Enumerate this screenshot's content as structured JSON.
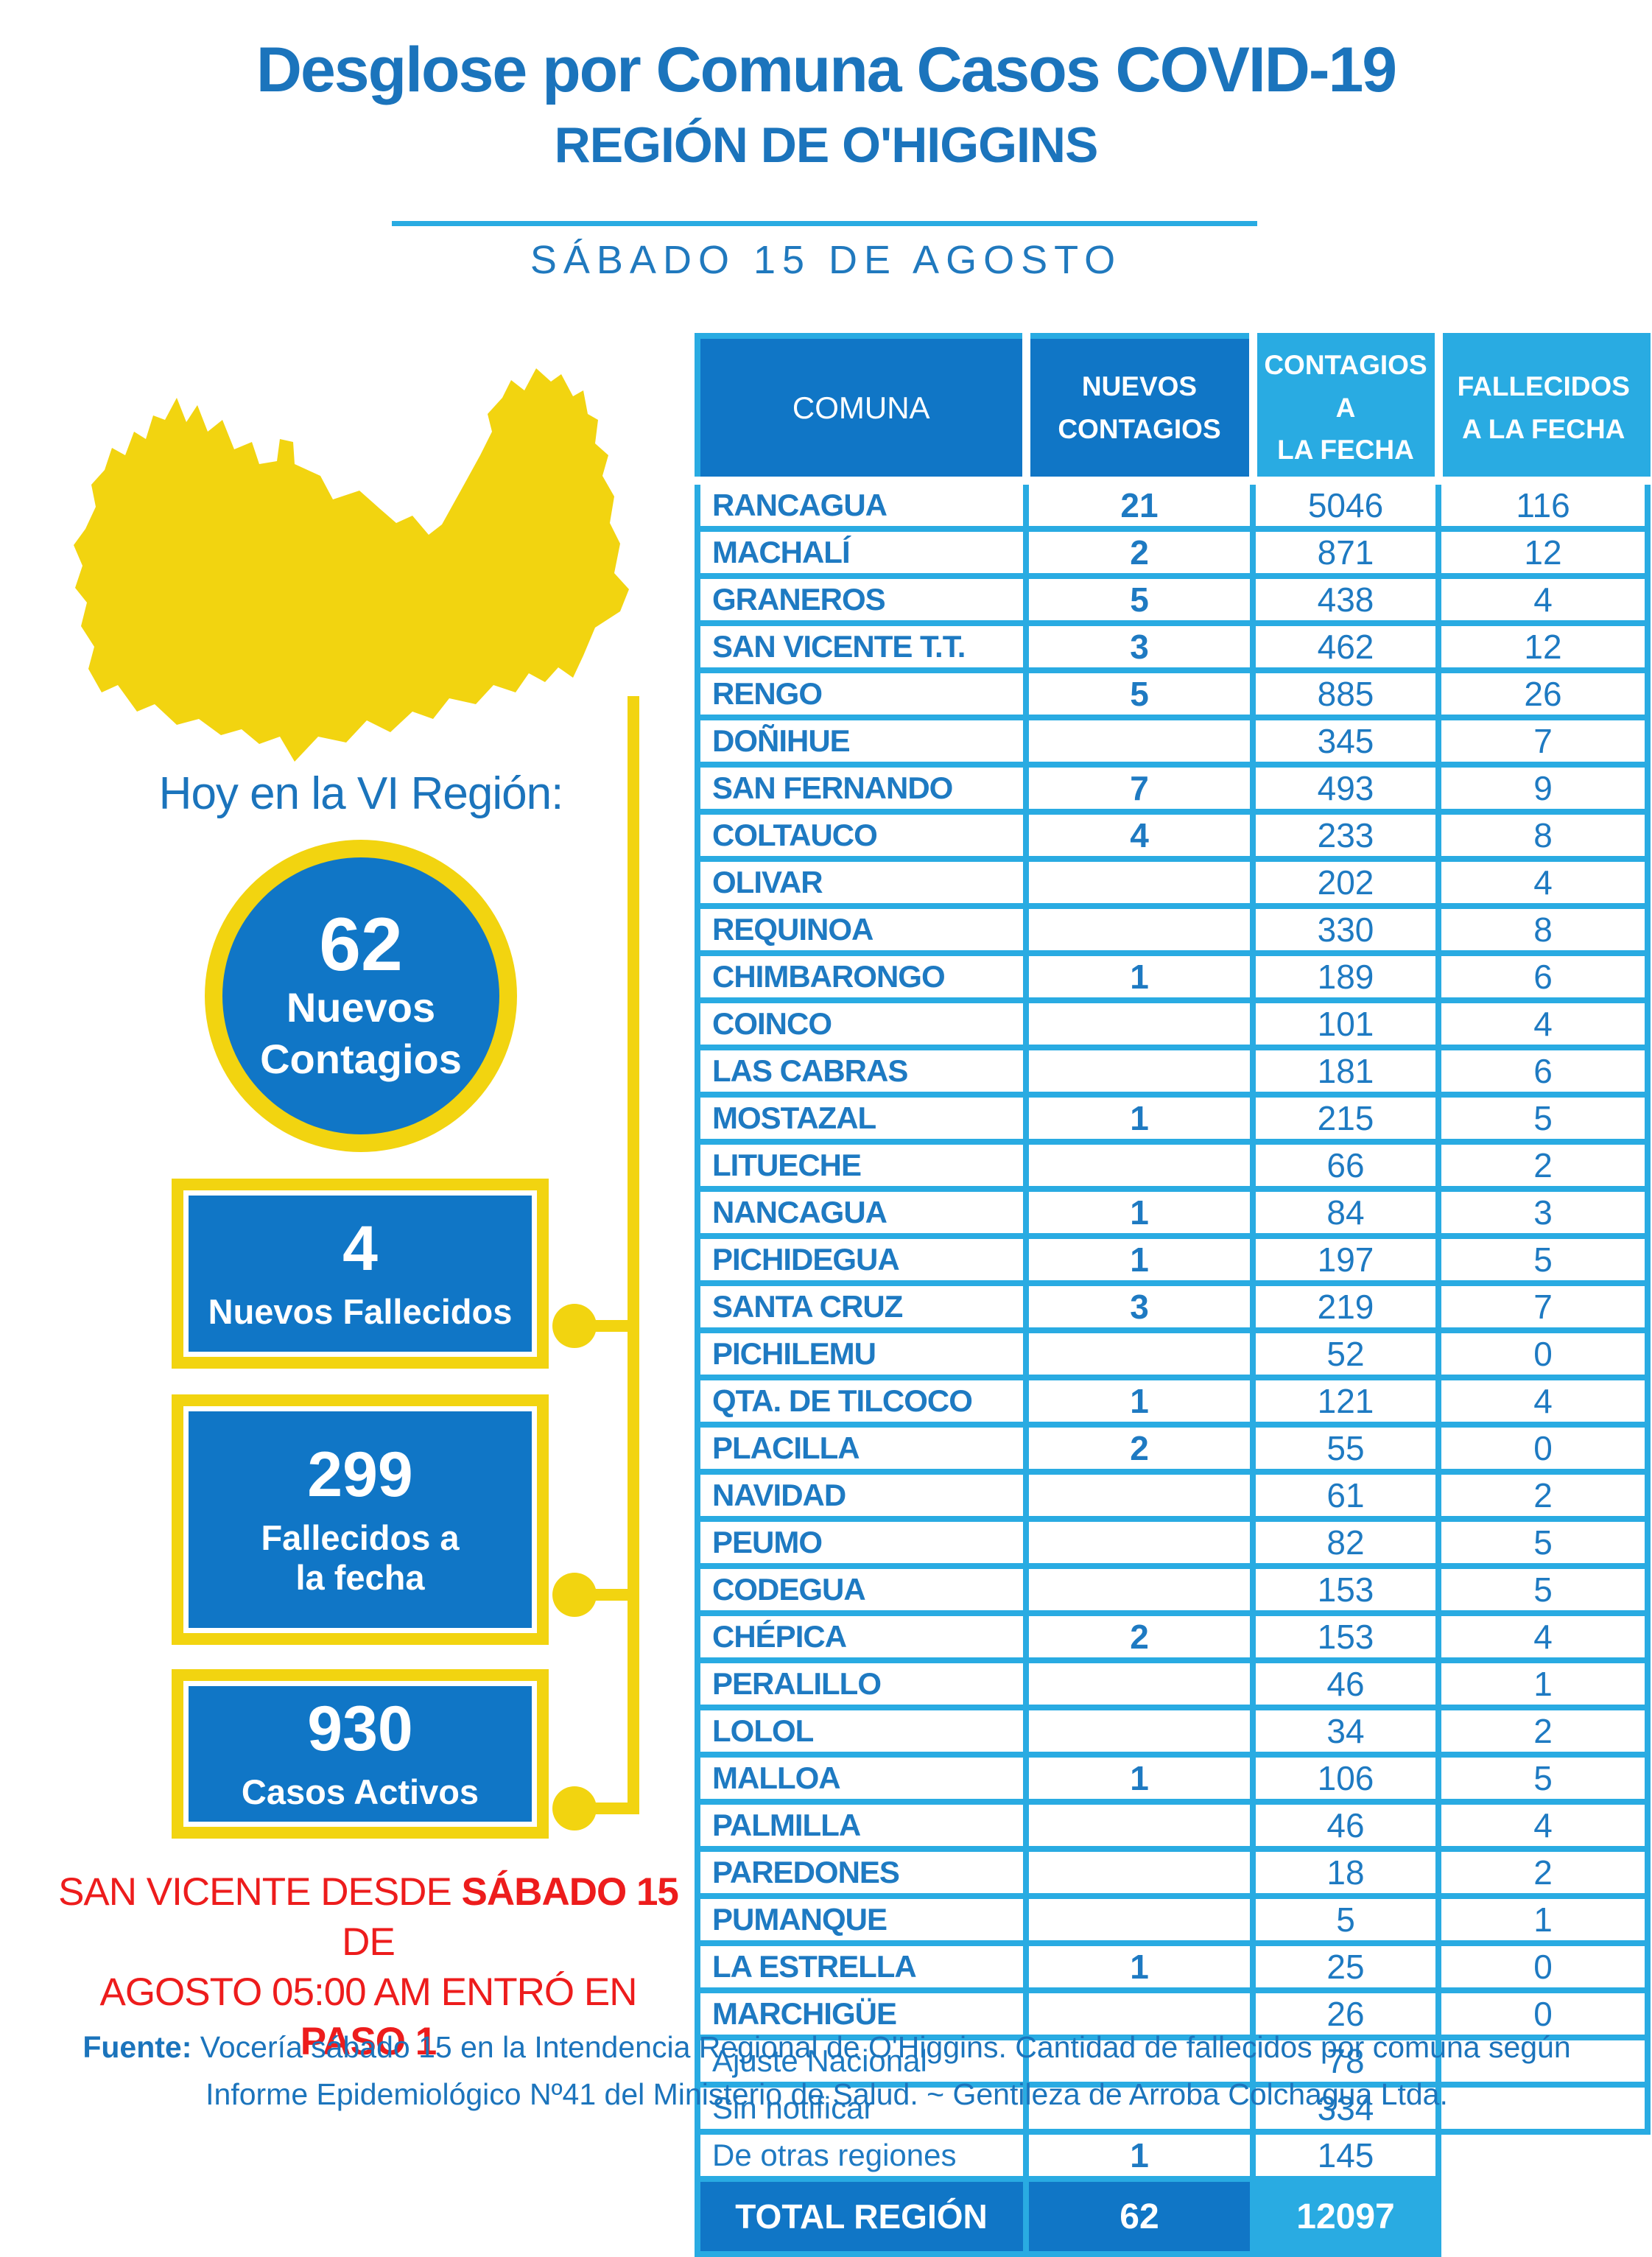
{
  "colors": {
    "title_blue": "#1b74bc",
    "light_blue": "#29abe2",
    "dark_blue_fill": "#1076c6",
    "cell_text_blue": "#1e7ac2",
    "yellow": "#f2d410",
    "red": "#ed1c1c"
  },
  "header": {
    "title": "Desglose por Comuna Casos COVID-19",
    "subtitle": "REGIÓN DE O'HIGGINS",
    "date": "SÁBADO 15 DE AGOSTO"
  },
  "left": {
    "hoy_label": "Hoy en la VI Región:",
    "circle": {
      "value": "62",
      "label_line1": "Nuevos",
      "label_line2": "Contagios"
    },
    "boxes": [
      {
        "value": "4",
        "label": [
          "Nuevos Fallecidos"
        ]
      },
      {
        "value": "299",
        "label": [
          "Fallecidos a",
          "la fecha"
        ]
      },
      {
        "value": "930",
        "label": [
          "Casos Activos"
        ]
      }
    ],
    "map_icon": "ohiggins-region-silhouette"
  },
  "alert": {
    "l1a": "SAN VICENTE DESDE ",
    "l1b": "SÁBADO 15",
    "l1c": " DE",
    "l2a": "AGOSTO 05:00 AM ENTRÓ EN ",
    "l2b": "PASO 1"
  },
  "table": {
    "headers": {
      "comuna": "COMUNA",
      "nuevos": [
        "NUEVOS",
        "CONTAGIOS"
      ],
      "contagios": [
        "CONTAGIOS A",
        "LA FECHA"
      ],
      "fallecidos": [
        "FALLECIDOS",
        "A LA FECHA"
      ]
    },
    "rows": [
      {
        "name": "RANCAGUA",
        "nuevos": "21",
        "contagios": "5046",
        "fallecidos": "116",
        "kind": "normal",
        "col4": "cell"
      },
      {
        "name": "MACHALÍ",
        "nuevos": "2",
        "contagios": "871",
        "fallecidos": "12",
        "kind": "normal",
        "col4": "cell"
      },
      {
        "name": "GRANEROS",
        "nuevos": "5",
        "contagios": "438",
        "fallecidos": "4",
        "kind": "normal",
        "col4": "cell"
      },
      {
        "name": "SAN VICENTE T.T.",
        "nuevos": "3",
        "contagios": "462",
        "fallecidos": "12",
        "kind": "normal",
        "col4": "cell"
      },
      {
        "name": "RENGO",
        "nuevos": "5",
        "contagios": "885",
        "fallecidos": "26",
        "kind": "normal",
        "col4": "cell"
      },
      {
        "name": "DOÑIHUE",
        "nuevos": "",
        "contagios": "345",
        "fallecidos": "7",
        "kind": "normal",
        "col4": "cell"
      },
      {
        "name": "SAN FERNANDO",
        "nuevos": "7",
        "contagios": "493",
        "fallecidos": "9",
        "kind": "normal",
        "col4": "cell"
      },
      {
        "name": "COLTAUCO",
        "nuevos": "4",
        "contagios": "233",
        "fallecidos": "8",
        "kind": "normal",
        "col4": "cell"
      },
      {
        "name": "OLIVAR",
        "nuevos": "",
        "contagios": "202",
        "fallecidos": "4",
        "kind": "normal",
        "col4": "cell"
      },
      {
        "name": "REQUINOA",
        "nuevos": "",
        "contagios": "330",
        "fallecidos": "8",
        "kind": "normal",
        "col4": "cell"
      },
      {
        "name": "CHIMBARONGO",
        "nuevos": "1",
        "contagios": "189",
        "fallecidos": "6",
        "kind": "normal",
        "col4": "cell"
      },
      {
        "name": "COINCO",
        "nuevos": "",
        "contagios": "101",
        "fallecidos": "4",
        "kind": "normal",
        "col4": "cell"
      },
      {
        "name": "LAS CABRAS",
        "nuevos": "",
        "contagios": "181",
        "fallecidos": "6",
        "kind": "normal",
        "col4": "cell"
      },
      {
        "name": "MOSTAZAL",
        "nuevos": "1",
        "contagios": "215",
        "fallecidos": "5",
        "kind": "normal",
        "col4": "cell"
      },
      {
        "name": "LITUECHE",
        "nuevos": "",
        "contagios": "66",
        "fallecidos": "2",
        "kind": "normal",
        "col4": "cell"
      },
      {
        "name": "NANCAGUA",
        "nuevos": "1",
        "contagios": "84",
        "fallecidos": "3",
        "kind": "normal",
        "col4": "cell"
      },
      {
        "name": "PICHIDEGUA",
        "nuevos": "1",
        "contagios": "197",
        "fallecidos": "5",
        "kind": "normal",
        "col4": "cell"
      },
      {
        "name": "SANTA CRUZ",
        "nuevos": "3",
        "contagios": "219",
        "fallecidos": "7",
        "kind": "normal",
        "col4": "cell"
      },
      {
        "name": "PICHILEMU",
        "nuevos": "",
        "contagios": "52",
        "fallecidos": "0",
        "kind": "normal",
        "col4": "cell"
      },
      {
        "name": "QTA. DE TILCOCO",
        "nuevos": "1",
        "contagios": "121",
        "fallecidos": "4",
        "kind": "normal",
        "col4": "cell"
      },
      {
        "name": "PLACILLA",
        "nuevos": "2",
        "contagios": "55",
        "fallecidos": "0",
        "kind": "normal",
        "col4": "cell"
      },
      {
        "name": "NAVIDAD",
        "nuevos": "",
        "contagios": "61",
        "fallecidos": "2",
        "kind": "normal",
        "col4": "cell"
      },
      {
        "name": "PEUMO",
        "nuevos": "",
        "contagios": "82",
        "fallecidos": "5",
        "kind": "normal",
        "col4": "cell"
      },
      {
        "name": "CODEGUA",
        "nuevos": "",
        "contagios": "153",
        "fallecidos": "5",
        "kind": "normal",
        "col4": "cell"
      },
      {
        "name": "CHÉPICA",
        "nuevos": "2",
        "contagios": "153",
        "fallecidos": "4",
        "kind": "normal",
        "col4": "cell"
      },
      {
        "name": "PERALILLO",
        "nuevos": "",
        "contagios": "46",
        "fallecidos": "1",
        "kind": "normal",
        "col4": "cell"
      },
      {
        "name": "LOLOL",
        "nuevos": "",
        "contagios": "34",
        "fallecidos": "2",
        "kind": "normal",
        "col4": "cell"
      },
      {
        "name": "MALLOA",
        "nuevos": "1",
        "contagios": "106",
        "fallecidos": "5",
        "kind": "normal",
        "col4": "cell"
      },
      {
        "name": "PALMILLA",
        "nuevos": "",
        "contagios": "46",
        "fallecidos": "4",
        "kind": "normal",
        "col4": "cell"
      },
      {
        "name": "PAREDONES",
        "nuevos": "",
        "contagios": "18",
        "fallecidos": "2",
        "kind": "normal",
        "col4": "cell"
      },
      {
        "name": "PUMANQUE",
        "nuevos": "",
        "contagios": "5",
        "fallecidos": "1",
        "kind": "normal",
        "col4": "cell"
      },
      {
        "name": "LA ESTRELLA",
        "nuevos": "1",
        "contagios": "25",
        "fallecidos": "0",
        "kind": "normal",
        "col4": "cell"
      },
      {
        "name": "MARCHIGÜE",
        "nuevos": "",
        "contagios": "26",
        "fallecidos": "0",
        "kind": "normal",
        "col4": "cell"
      },
      {
        "name": "Ajuste Nacional",
        "nuevos": "",
        "contagios": "78",
        "fallecidos": "",
        "kind": "plain",
        "col4": "cell"
      },
      {
        "name": "Sin notificar",
        "nuevos": "",
        "contagios": "334",
        "fallecidos": "",
        "kind": "plain",
        "col4": "cell"
      },
      {
        "name": "De otras regiones",
        "nuevos": "1",
        "contagios": "145",
        "fallecidos": "",
        "kind": "plain",
        "col4": "none"
      }
    ],
    "total": {
      "label": "TOTAL REGIÓN",
      "nuevos": "62",
      "contagios": "12097"
    }
  },
  "footer": {
    "f1a": "Fuente:",
    "f1b": "  Vocería sábado 15 en la Intendencia Regional de O'Higgins. Cantidad de fallecidos por comuna según",
    "line2": "Informe Epidemiológico Nº41 del Ministerio de Salud.  ~ Gentileza de Arroba Colchagua Ltda."
  }
}
